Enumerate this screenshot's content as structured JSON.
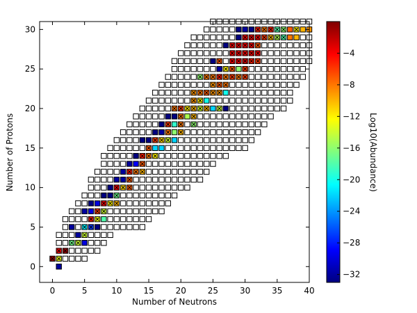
{
  "chart_data": {
    "type": "heatmap",
    "xlabel": "Number of Neutrons",
    "ylabel": "Number of Protons",
    "colorbar_label": "Log10(Abundance)",
    "xlim": [
      -2,
      40
    ],
    "ylim": [
      -2,
      31
    ],
    "xticks": [
      0,
      5,
      10,
      15,
      20,
      25,
      30,
      35,
      40
    ],
    "yticks": [
      0,
      5,
      10,
      15,
      20,
      25,
      30
    ],
    "colorbar_range": [
      -33,
      0
    ],
    "colorbar_ticks": [
      -4,
      -8,
      -12,
      -16,
      -20,
      -24,
      -28,
      -32
    ],
    "colormap": [
      "#00007f",
      "#0000ff",
      "#007fff",
      "#00ffff",
      "#7fff7f",
      "#ffff00",
      "#ff7f00",
      "#ff0000",
      "#7f0000"
    ],
    "empty_cell_color": "#ffffff",
    "stable_marker": "x",
    "grid": false,
    "legend": "none",
    "nuclide_grid": {
      "description_rows": "per proton number Z: neutron range of grid squares",
      "rows": [
        {
          "z": 0,
          "n_min": 1,
          "n_max": 1
        },
        {
          "z": 1,
          "n_min": 0,
          "n_max": 5
        },
        {
          "z": 2,
          "n_min": 1,
          "n_max": 7
        },
        {
          "z": 3,
          "n_min": 1,
          "n_max": 8
        },
        {
          "z": 4,
          "n_min": 1,
          "n_max": 9
        },
        {
          "z": 5,
          "n_min": 2,
          "n_max": 14
        },
        {
          "z": 6,
          "n_min": 2,
          "n_max": 15
        },
        {
          "z": 7,
          "n_min": 3,
          "n_max": 17
        },
        {
          "z": 8,
          "n_min": 4,
          "n_max": 18
        },
        {
          "z": 9,
          "n_min": 5,
          "n_max": 19
        },
        {
          "z": 10,
          "n_min": 6,
          "n_max": 21
        },
        {
          "z": 11,
          "n_min": 6,
          "n_max": 23
        },
        {
          "z": 12,
          "n_min": 7,
          "n_max": 24
        },
        {
          "z": 13,
          "n_min": 8,
          "n_max": 25
        },
        {
          "z": 14,
          "n_min": 8,
          "n_max": 27
        },
        {
          "z": 15,
          "n_min": 9,
          "n_max": 30
        },
        {
          "z": 16,
          "n_min": 10,
          "n_max": 31
        },
        {
          "z": 17,
          "n_min": 11,
          "n_max": 32
        },
        {
          "z": 18,
          "n_min": 12,
          "n_max": 33
        },
        {
          "z": 19,
          "n_min": 13,
          "n_max": 34
        },
        {
          "z": 20,
          "n_min": 14,
          "n_max": 36
        },
        {
          "z": 21,
          "n_min": 15,
          "n_max": 37
        },
        {
          "z": 22,
          "n_min": 16,
          "n_max": 37
        },
        {
          "z": 23,
          "n_min": 17,
          "n_max": 38
        },
        {
          "z": 24,
          "n_min": 18,
          "n_max": 39
        },
        {
          "z": 25,
          "n_min": 19,
          "n_max": 39
        },
        {
          "z": 26,
          "n_min": 19,
          "n_max": 40
        },
        {
          "z": 27,
          "n_min": 20,
          "n_max": 40
        },
        {
          "z": 28,
          "n_min": 21,
          "n_max": 40
        },
        {
          "z": 29,
          "n_min": 22,
          "n_max": 40
        },
        {
          "z": 30,
          "n_min": 24,
          "n_max": 40
        },
        {
          "z": 31,
          "n_min": 25,
          "n_max": 40
        }
      ]
    },
    "abundances": [
      {
        "n": 1,
        "z": 0,
        "log10": -32,
        "stable": false
      },
      {
        "n": 0,
        "z": 1,
        "log10": -1,
        "stable": true
      },
      {
        "n": 1,
        "z": 1,
        "log10": -13,
        "stable": true
      },
      {
        "n": 1,
        "z": 2,
        "log10": -4,
        "stable": true
      },
      {
        "n": 2,
        "z": 2,
        "log10": -1,
        "stable": true
      },
      {
        "n": 3,
        "z": 3,
        "log10": -17,
        "stable": true
      },
      {
        "n": 4,
        "z": 3,
        "log10": -14,
        "stable": true
      },
      {
        "n": 5,
        "z": 3,
        "log10": -30,
        "stable": false
      },
      {
        "n": 4,
        "z": 4,
        "log10": -32,
        "stable": false
      },
      {
        "n": 5,
        "z": 4,
        "log10": -14,
        "stable": true
      },
      {
        "n": 3,
        "z": 5,
        "log10": -32,
        "stable": false
      },
      {
        "n": 5,
        "z": 5,
        "log10": -21,
        "stable": true
      },
      {
        "n": 6,
        "z": 5,
        "log10": -27,
        "stable": true
      },
      {
        "n": 7,
        "z": 5,
        "log10": -33,
        "stable": false
      },
      {
        "n": 6,
        "z": 6,
        "log10": -5,
        "stable": true
      },
      {
        "n": 7,
        "z": 6,
        "log10": -13,
        "stable": true
      },
      {
        "n": 8,
        "z": 6,
        "log10": -18,
        "stable": false
      },
      {
        "n": 5,
        "z": 7,
        "log10": -32,
        "stable": false
      },
      {
        "n": 6,
        "z": 7,
        "log10": -30,
        "stable": false
      },
      {
        "n": 7,
        "z": 7,
        "log10": -6,
        "stable": true
      },
      {
        "n": 8,
        "z": 7,
        "log10": -14,
        "stable": true
      },
      {
        "n": 6,
        "z": 8,
        "log10": -33,
        "stable": false
      },
      {
        "n": 7,
        "z": 8,
        "log10": -30,
        "stable": false
      },
      {
        "n": 8,
        "z": 8,
        "log10": -4,
        "stable": true
      },
      {
        "n": 9,
        "z": 8,
        "log10": -12,
        "stable": true
      },
      {
        "n": 10,
        "z": 8,
        "log10": -10,
        "stable": true
      },
      {
        "n": 8,
        "z": 9,
        "log10": -33,
        "stable": false
      },
      {
        "n": 9,
        "z": 9,
        "log10": -33,
        "stable": false
      },
      {
        "n": 10,
        "z": 9,
        "log10": -17,
        "stable": true
      },
      {
        "n": 9,
        "z": 10,
        "log10": -33,
        "stable": false
      },
      {
        "n": 10,
        "z": 10,
        "log10": -4,
        "stable": true
      },
      {
        "n": 11,
        "z": 10,
        "log10": -11,
        "stable": true
      },
      {
        "n": 12,
        "z": 10,
        "log10": -7,
        "stable": true
      },
      {
        "n": 10,
        "z": 11,
        "log10": -32,
        "stable": false
      },
      {
        "n": 11,
        "z": 11,
        "log10": -32,
        "stable": false
      },
      {
        "n": 12,
        "z": 11,
        "log10": -7,
        "stable": true
      },
      {
        "n": 11,
        "z": 12,
        "log10": -32,
        "stable": false
      },
      {
        "n": 12,
        "z": 12,
        "log10": -5,
        "stable": true
      },
      {
        "n": 13,
        "z": 12,
        "log10": -8,
        "stable": true
      },
      {
        "n": 14,
        "z": 12,
        "log10": -10,
        "stable": true
      },
      {
        "n": 12,
        "z": 13,
        "log10": -32,
        "stable": false
      },
      {
        "n": 13,
        "z": 13,
        "log10": -29,
        "stable": false
      },
      {
        "n": 14,
        "z": 13,
        "log10": -7,
        "stable": true
      },
      {
        "n": 13,
        "z": 14,
        "log10": -33,
        "stable": false
      },
      {
        "n": 14,
        "z": 14,
        "log10": -5,
        "stable": true
      },
      {
        "n": 15,
        "z": 14,
        "log10": -8,
        "stable": true
      },
      {
        "n": 16,
        "z": 14,
        "log10": -12,
        "stable": true
      },
      {
        "n": 15,
        "z": 15,
        "log10": -7,
        "stable": true
      },
      {
        "n": 16,
        "z": 15,
        "log10": -22,
        "stable": false
      },
      {
        "n": 17,
        "z": 15,
        "log10": -22,
        "stable": false
      },
      {
        "n": 14,
        "z": 16,
        "log10": -33,
        "stable": false
      },
      {
        "n": 15,
        "z": 16,
        "log10": -33,
        "stable": false
      },
      {
        "n": 16,
        "z": 16,
        "log10": -6,
        "stable": true
      },
      {
        "n": 17,
        "z": 16,
        "log10": -11,
        "stable": true
      },
      {
        "n": 18,
        "z": 16,
        "log10": -14,
        "stable": true
      },
      {
        "n": 19,
        "z": 16,
        "log10": -22,
        "stable": false
      },
      {
        "n": 16,
        "z": 17,
        "log10": -33,
        "stable": false
      },
      {
        "n": 17,
        "z": 17,
        "log10": -32,
        "stable": false
      },
      {
        "n": 18,
        "z": 17,
        "log10": -8,
        "stable": true
      },
      {
        "n": 19,
        "z": 17,
        "log10": -16,
        "stable": false
      },
      {
        "n": 20,
        "z": 17,
        "log10": -10,
        "stable": true
      },
      {
        "n": 17,
        "z": 18,
        "log10": -33,
        "stable": false
      },
      {
        "n": 18,
        "z": 18,
        "log10": -6,
        "stable": true
      },
      {
        "n": 19,
        "z": 18,
        "log10": -19,
        "stable": false
      },
      {
        "n": 20,
        "z": 18,
        "log10": -8,
        "stable": true
      },
      {
        "n": 22,
        "z": 18,
        "log10": -16,
        "stable": true
      },
      {
        "n": 18,
        "z": 19,
        "log10": -33,
        "stable": false
      },
      {
        "n": 19,
        "z": 19,
        "log10": -33,
        "stable": false
      },
      {
        "n": 20,
        "z": 19,
        "log10": -8,
        "stable": true
      },
      {
        "n": 21,
        "z": 19,
        "log10": -15,
        "stable": false
      },
      {
        "n": 22,
        "z": 19,
        "log10": -10,
        "stable": true
      },
      {
        "n": 19,
        "z": 20,
        "log10": -8,
        "stable": true
      },
      {
        "n": 20,
        "z": 20,
        "log10": -6,
        "stable": true
      },
      {
        "n": 21,
        "z": 20,
        "log10": -12,
        "stable": true
      },
      {
        "n": 22,
        "z": 20,
        "log10": -10,
        "stable": true
      },
      {
        "n": 23,
        "z": 20,
        "log10": -14,
        "stable": true
      },
      {
        "n": 24,
        "z": 20,
        "log10": -10,
        "stable": true
      },
      {
        "n": 25,
        "z": 20,
        "log10": -22,
        "stable": false
      },
      {
        "n": 26,
        "z": 20,
        "log10": -14,
        "stable": true
      },
      {
        "n": 27,
        "z": 20,
        "log10": -33,
        "stable": false
      },
      {
        "n": 22,
        "z": 21,
        "log10": -9,
        "stable": true
      },
      {
        "n": 23,
        "z": 21,
        "log10": -12,
        "stable": true
      },
      {
        "n": 24,
        "z": 21,
        "log10": -20,
        "stable": false
      },
      {
        "n": 22,
        "z": 22,
        "log10": -9,
        "stable": true
      },
      {
        "n": 23,
        "z": 22,
        "log10": -8,
        "stable": true
      },
      {
        "n": 24,
        "z": 22,
        "log10": -7,
        "stable": true
      },
      {
        "n": 25,
        "z": 22,
        "log10": -9,
        "stable": true
      },
      {
        "n": 26,
        "z": 22,
        "log10": -9,
        "stable": true
      },
      {
        "n": 27,
        "z": 22,
        "log10": -20,
        "stable": false
      },
      {
        "n": 25,
        "z": 23,
        "log10": -9,
        "stable": true
      },
      {
        "n": 26,
        "z": 23,
        "log10": -7,
        "stable": true
      },
      {
        "n": 27,
        "z": 23,
        "log10": -8,
        "stable": true
      },
      {
        "n": 23,
        "z": 24,
        "log10": -16,
        "stable": true
      },
      {
        "n": 24,
        "z": 24,
        "log10": -8,
        "stable": true
      },
      {
        "n": 25,
        "z": 24,
        "log10": -8,
        "stable": true
      },
      {
        "n": 26,
        "z": 24,
        "log10": -5,
        "stable": true
      },
      {
        "n": 27,
        "z": 24,
        "log10": -8,
        "stable": true
      },
      {
        "n": 28,
        "z": 24,
        "log10": -6,
        "stable": true
      },
      {
        "n": 29,
        "z": 24,
        "log10": -8,
        "stable": true
      },
      {
        "n": 30,
        "z": 24,
        "log10": -6,
        "stable": true
      },
      {
        "n": 26,
        "z": 25,
        "log10": -32,
        "stable": false
      },
      {
        "n": 27,
        "z": 25,
        "log10": -12,
        "stable": true
      },
      {
        "n": 28,
        "z": 25,
        "log10": -7,
        "stable": true
      },
      {
        "n": 29,
        "z": 25,
        "log10": -16,
        "stable": false
      },
      {
        "n": 30,
        "z": 25,
        "log10": -6,
        "stable": true
      },
      {
        "n": 25,
        "z": 26,
        "log10": -33,
        "stable": false
      },
      {
        "n": 26,
        "z": 26,
        "log10": -7,
        "stable": true
      },
      {
        "n": 28,
        "z": 26,
        "log10": -4,
        "stable": true
      },
      {
        "n": 29,
        "z": 26,
        "log10": -4,
        "stable": true
      },
      {
        "n": 30,
        "z": 26,
        "log10": -3,
        "stable": true
      },
      {
        "n": 31,
        "z": 26,
        "log10": -5,
        "stable": true
      },
      {
        "n": 32,
        "z": 26,
        "log10": -6,
        "stable": true
      },
      {
        "n": 28,
        "z": 27,
        "log10": -4,
        "stable": true
      },
      {
        "n": 29,
        "z": 27,
        "log10": -4,
        "stable": true
      },
      {
        "n": 30,
        "z": 27,
        "log10": -4,
        "stable": true
      },
      {
        "n": 31,
        "z": 27,
        "log10": -4,
        "stable": true
      },
      {
        "n": 32,
        "z": 27,
        "log10": -4,
        "stable": true
      },
      {
        "n": 27,
        "z": 28,
        "log10": -33,
        "stable": false
      },
      {
        "n": 28,
        "z": 28,
        "log10": -4,
        "stable": true
      },
      {
        "n": 29,
        "z": 28,
        "log10": -4,
        "stable": true
      },
      {
        "n": 30,
        "z": 28,
        "log10": -4,
        "stable": true
      },
      {
        "n": 31,
        "z": 28,
        "log10": -4,
        "stable": true
      },
      {
        "n": 32,
        "z": 28,
        "log10": -7,
        "stable": true
      },
      {
        "n": 29,
        "z": 29,
        "log10": -33,
        "stable": false
      },
      {
        "n": 30,
        "z": 29,
        "log10": -4,
        "stable": true
      },
      {
        "n": 31,
        "z": 29,
        "log10": -4,
        "stable": true
      },
      {
        "n": 32,
        "z": 29,
        "log10": -4,
        "stable": true
      },
      {
        "n": 33,
        "z": 29,
        "log10": -6,
        "stable": true
      },
      {
        "n": 34,
        "z": 29,
        "log10": -10,
        "stable": true
      },
      {
        "n": 35,
        "z": 29,
        "log10": -15,
        "stable": true
      },
      {
        "n": 36,
        "z": 29,
        "log10": -18,
        "stable": true
      },
      {
        "n": 37,
        "z": 29,
        "log10": -8,
        "stable": false
      },
      {
        "n": 38,
        "z": 29,
        "log10": -10,
        "stable": false
      },
      {
        "n": 29,
        "z": 30,
        "log10": -33,
        "stable": false
      },
      {
        "n": 30,
        "z": 30,
        "log10": -32,
        "stable": false
      },
      {
        "n": 31,
        "z": 30,
        "log10": -33,
        "stable": false
      },
      {
        "n": 32,
        "z": 30,
        "log10": -5,
        "stable": true
      },
      {
        "n": 33,
        "z": 30,
        "log10": -8,
        "stable": true
      },
      {
        "n": 34,
        "z": 30,
        "log10": -5,
        "stable": true
      },
      {
        "n": 35,
        "z": 30,
        "log10": -18,
        "stable": true
      },
      {
        "n": 36,
        "z": 30,
        "log10": -16,
        "stable": true
      },
      {
        "n": 37,
        "z": 30,
        "log10": -7,
        "stable": false
      },
      {
        "n": 38,
        "z": 30,
        "log10": -12,
        "stable": true
      },
      {
        "n": 39,
        "z": 30,
        "log10": -10,
        "stable": false
      },
      {
        "n": 40,
        "z": 30,
        "log10": -9,
        "stable": false
      }
    ]
  }
}
